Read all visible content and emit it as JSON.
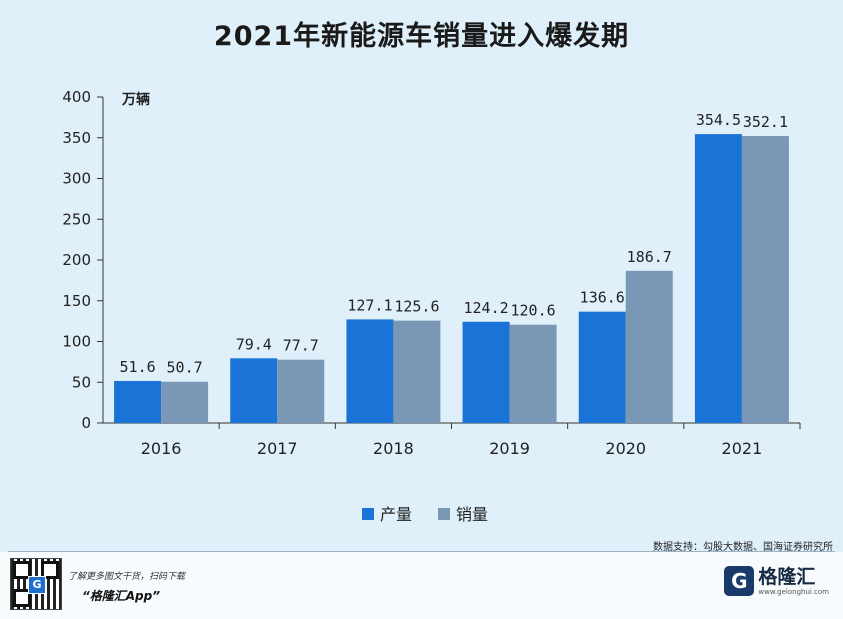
{
  "page": {
    "title": "2021年新能源车销量进入爆发期",
    "source": "数据支持：勾股大数据、国海证券研究所",
    "footer_text": "了解更多图文干货，扫码下载",
    "footer_app": "“格隆汇App”",
    "brand_name": "格隆汇",
    "brand_url": "www.gelonghui.com",
    "qr_logo": "G",
    "brand_mark": "G"
  },
  "chart_data": {
    "type": "bar",
    "title": "2021年新能源车销量进入爆发期",
    "ylabel": "万辆",
    "xlabel": "",
    "ylim": [
      0,
      400
    ],
    "yticks": [
      0,
      50,
      100,
      150,
      200,
      250,
      300,
      350,
      400
    ],
    "categories": [
      "2016",
      "2017",
      "2018",
      "2019",
      "2020",
      "2021"
    ],
    "series": [
      {
        "name": "产量",
        "color": "#1a73d6",
        "values": [
          51.6,
          79.4,
          127.1,
          124.2,
          136.6,
          354.5
        ],
        "labels": [
          "51.6",
          "79.4",
          "127.1",
          "124.2",
          "136.6",
          "354.5"
        ]
      },
      {
        "name": "销量",
        "color": "#7b97b6",
        "values": [
          50.7,
          77.7,
          125.6,
          120.6,
          186.7,
          352.1
        ],
        "labels": [
          "50.7",
          "77.7",
          "125.6",
          "120.6",
          "186.7",
          "352.1"
        ]
      }
    ],
    "legend": "bottom-center",
    "grid": false
  }
}
